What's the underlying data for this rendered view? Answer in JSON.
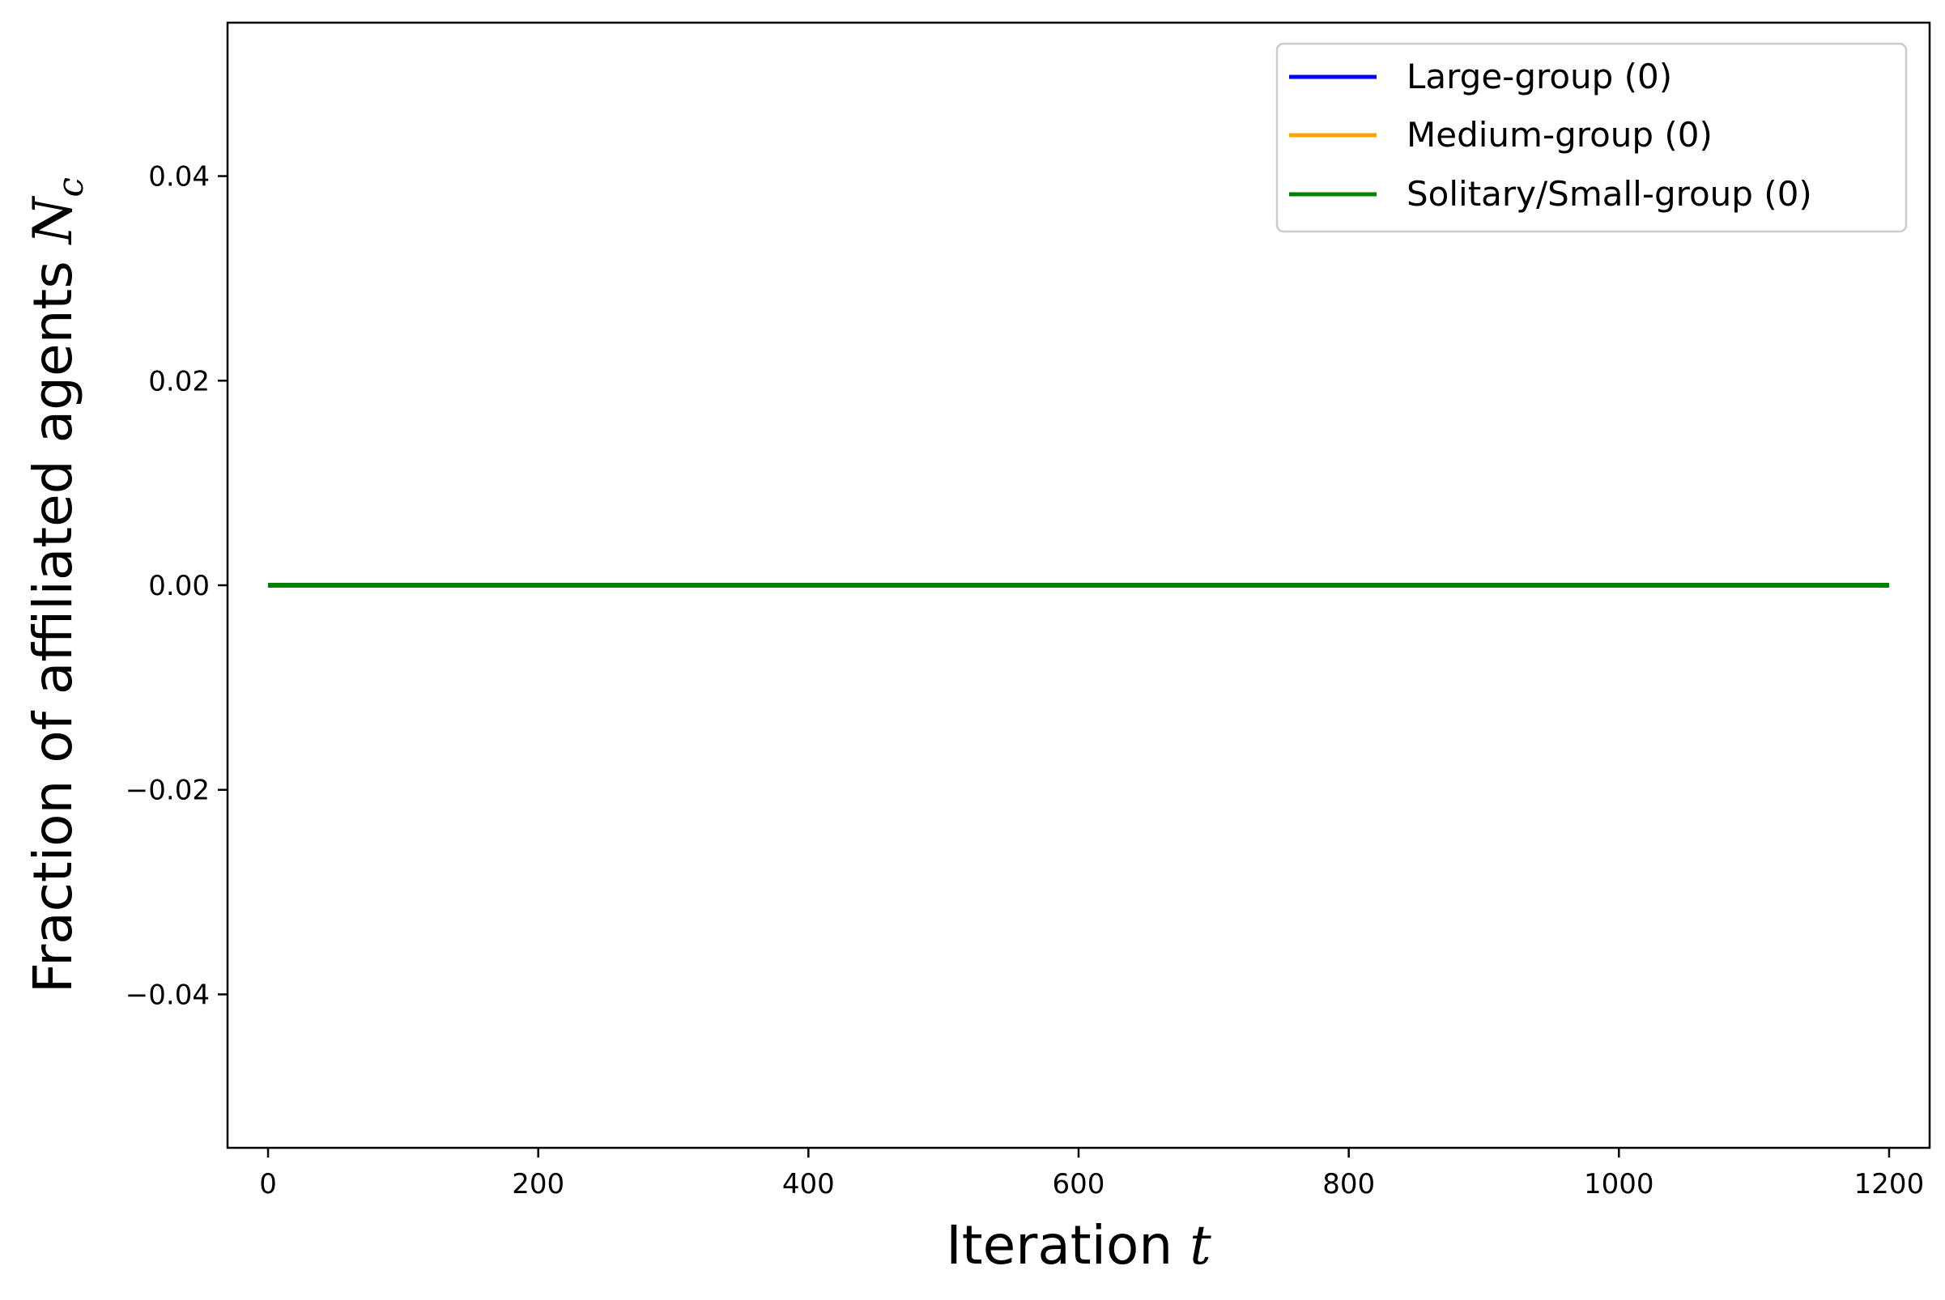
{
  "chart_data": {
    "type": "line",
    "title": "",
    "xlabel": "Iteration",
    "xlabel_symbol": "t",
    "ylabel": "Fraction of affiliated agents",
    "ylabel_symbol": "N",
    "ylabel_symbol_sub": "c",
    "xlim": [
      -30,
      1230
    ],
    "ylim": [
      -0.055,
      0.055
    ],
    "xticks": [
      0,
      200,
      400,
      600,
      800,
      1000,
      1200
    ],
    "xtick_labels": [
      "0",
      "200",
      "400",
      "600",
      "800",
      "1000",
      "1200"
    ],
    "yticks": [
      -0.04,
      -0.02,
      0.0,
      0.02,
      0.04
    ],
    "ytick_labels": [
      "−0.04",
      "−0.02",
      "0.00",
      "0.02",
      "0.04"
    ],
    "grid": false,
    "legend_position": "top-right",
    "series": [
      {
        "name": "Large-group (0)",
        "color": "#0000ff",
        "x": [
          0,
          1200
        ],
        "y": [
          0,
          0
        ]
      },
      {
        "name": "Medium-group (0)",
        "color": "#ffa500",
        "x": [
          0,
          1200
        ],
        "y": [
          0,
          0
        ]
      },
      {
        "name": "Solitary/Small-group (0)",
        "color": "#008000",
        "x": [
          0,
          1200
        ],
        "y": [
          0,
          0
        ]
      }
    ]
  }
}
